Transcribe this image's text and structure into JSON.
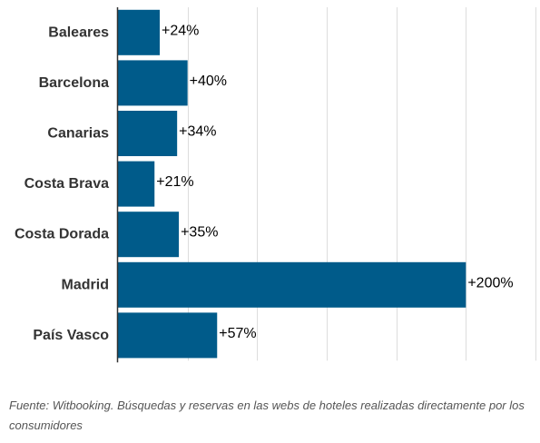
{
  "chart_data": {
    "type": "bar",
    "orientation": "horizontal",
    "categories": [
      "Baleares",
      "Barcelona",
      "Canarias",
      "Costa Brava",
      "Costa Dorada",
      "Madrid",
      "País Vasco"
    ],
    "values": [
      24,
      40,
      34,
      21,
      35,
      200,
      57
    ],
    "value_labels": [
      "+24%",
      "+40%",
      "+34%",
      "+21%",
      "+35%",
      "+200%",
      "+57%"
    ],
    "xlim": [
      0,
      240
    ],
    "grid": true,
    "bar_color": "#005b8a",
    "grid_color": "#dddddd",
    "axis_color": "#333333"
  },
  "source_note": "Fuente: Witbooking. Búsquedas y reservas en las webs de hoteles realizadas directamente por los consumidores"
}
